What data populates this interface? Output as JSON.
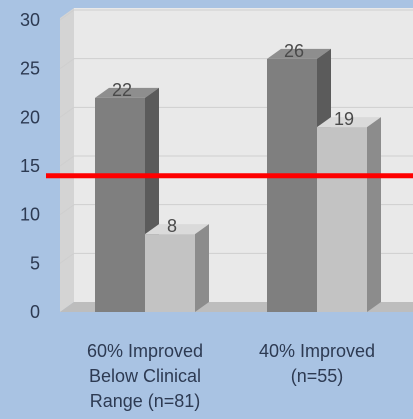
{
  "chart_data": {
    "type": "bar",
    "title": "",
    "xlabel": "",
    "ylabel": "",
    "categories": [
      [
        "60% Improved",
        "Below Clinical",
        "Range (n=81)"
      ],
      [
        "40% Improved",
        "(n=55)"
      ]
    ],
    "series": [
      {
        "values": [
          22,
          26
        ],
        "color": "#7f7f7f"
      },
      {
        "values": [
          8,
          19
        ],
        "color": "#c3c3c3"
      }
    ],
    "data_labels": [
      [
        "22",
        "26"
      ],
      [
        "8",
        "19"
      ]
    ],
    "ylim": [
      0,
      30
    ],
    "yticks": [
      0,
      5,
      10,
      15,
      20,
      25,
      30
    ],
    "grid": true,
    "style": "3d-column",
    "reference_line": {
      "value": 14,
      "color": "#ff0000"
    },
    "colors": {
      "background": "#a9c3e3",
      "wall": "#e9e9e9",
      "grid": "#cfcfcf"
    }
  }
}
